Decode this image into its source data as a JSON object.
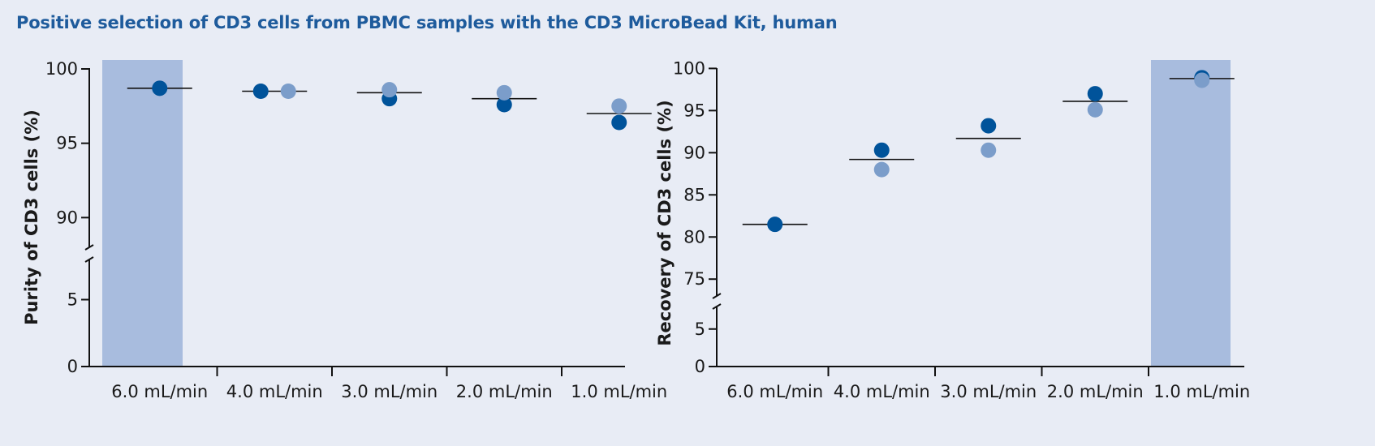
{
  "title": "Positive selection of CD3 cells from PBMC samples with the CD3 MicroBead Kit, human",
  "colors": {
    "dark": "#00539a",
    "light": "#7b9dca",
    "highlight": "#a8bcde",
    "background": "#e8ecf5",
    "axis": "#111111"
  },
  "chart_data": [
    {
      "type": "scatter",
      "title": "",
      "ylabel": "Purity of CD3 cells (%)",
      "xlabel": "",
      "categories": [
        "6.0 mL/min",
        "4.0 mL/min",
        "3.0 mL/min",
        "2.0 mL/min",
        "1.0 mL/min"
      ],
      "highlight_category": "6.0 mL/min",
      "y_segments": [
        {
          "range": [
            0,
            8
          ],
          "ticks": [
            0,
            5
          ]
        },
        {
          "range": [
            88,
            100.6
          ],
          "ticks": [
            90,
            95,
            100
          ]
        }
      ],
      "axis_break": true,
      "series": [
        {
          "name": "dark",
          "values": [
            98.7,
            98.5,
            98.0,
            97.6,
            96.4
          ]
        },
        {
          "name": "light",
          "values": [
            null,
            98.5,
            98.6,
            98.4,
            97.5
          ]
        }
      ],
      "means": [
        98.7,
        98.5,
        98.4,
        98.0,
        97.0
      ]
    },
    {
      "type": "scatter",
      "title": "",
      "ylabel": "Recovery of CD3 cells (%)",
      "xlabel": "",
      "categories": [
        "6.0 mL/min",
        "4.0 mL/min",
        "3.0 mL/min",
        "2.0 mL/min",
        "1.0 mL/min"
      ],
      "highlight_category": "1.0 mL/min",
      "y_segments": [
        {
          "range": [
            0,
            8
          ],
          "ticks": [
            0,
            5
          ]
        },
        {
          "range": [
            73,
            101
          ],
          "ticks": [
            75,
            80,
            85,
            90,
            95,
            100
          ]
        }
      ],
      "axis_break": true,
      "series": [
        {
          "name": "dark",
          "values": [
            81.5,
            90.3,
            93.2,
            97.0,
            98.9
          ]
        },
        {
          "name": "light",
          "values": [
            null,
            88.0,
            90.3,
            95.1,
            98.6
          ]
        }
      ],
      "means": [
        81.5,
        89.2,
        91.7,
        96.1,
        98.8
      ]
    }
  ]
}
